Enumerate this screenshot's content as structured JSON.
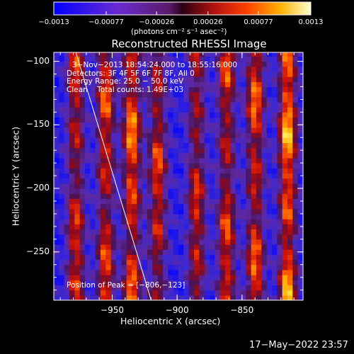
{
  "chart_data": {
    "type": "heatmap",
    "title": "Reconstructed RHESSI Image",
    "xlabel": "Heliocentric X (arcsec)",
    "ylabel": "Heliocentric Y (arcsec)",
    "xlim": [
      -995,
      -803
    ],
    "ylim": [
      -288,
      -93
    ],
    "xticks": [
      -950,
      -900,
      -850
    ],
    "xtick_labels": [
      "−950",
      "−900",
      "−850"
    ],
    "yticks": [
      -100,
      -150,
      -200,
      -250
    ],
    "ytick_labels": [
      "−100",
      "−150",
      "−200",
      "−250"
    ],
    "colorbar": {
      "min": -0.0013,
      "max": 0.0013,
      "ticks": [
        -0.0013,
        -0.00077,
        -0.00026,
        0.00026,
        0.00077,
        0.0013
      ],
      "tick_labels": [
        "−0.0013",
        "−0.00077",
        "−0.00026",
        "0.00026",
        "0.00077",
        "0.0013"
      ],
      "units_label": "(photons cm⁻² s⁻¹ asec⁻²)"
    },
    "annotations": [
      "3−Nov−2013 18:54:24.000 to 18:55:16.000",
      "Detectors: 3F 4F 5F 6F 7F 8F, All 0",
      "Energy Range: 25.0 − 50.0 keV",
      "Clean    Total counts: 1.49E+03"
    ],
    "peak_label": "Position of Peak = [−806,−123]",
    "limb_line": {
      "x": [
        -978,
        -920
      ],
      "y": [
        -93,
        -288
      ]
    },
    "stripes": [
      {
        "x": -978,
        "amp": 0.9
      },
      {
        "x": -955,
        "amp": 1.0
      },
      {
        "x": -935,
        "amp": 1.15
      },
      {
        "x": -915,
        "amp": 0.95
      },
      {
        "x": -885,
        "amp": 0.85
      },
      {
        "x": -862,
        "amp": 0.95
      },
      {
        "x": -840,
        "amp": 1.05
      },
      {
        "x": -815,
        "amp": 1.3
      }
    ],
    "grid": false,
    "colormap": "blue-purple-red-yellow-white"
  },
  "timestamp": "17−May−2022 23:57"
}
